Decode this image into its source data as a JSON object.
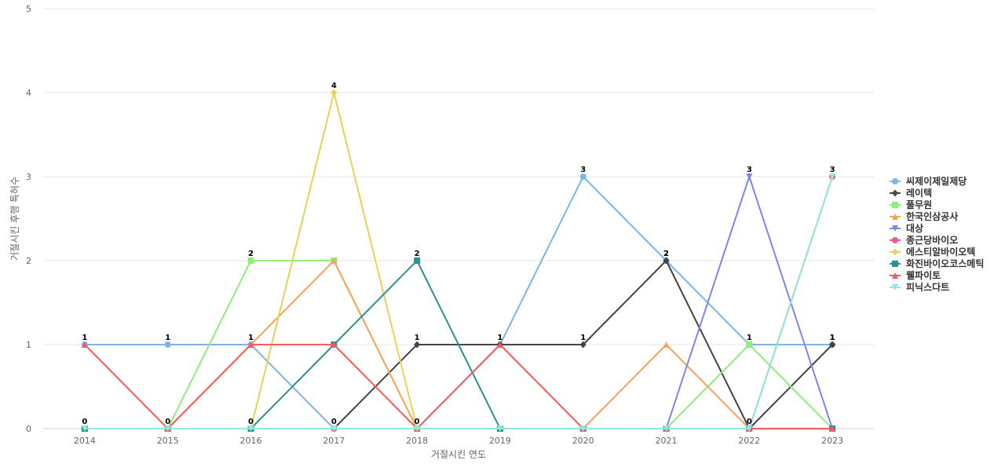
{
  "chart_data": {
    "type": "line",
    "title": "",
    "xlabel": "거절시킨 연도",
    "ylabel": "거절시킨 후행 특허수",
    "x": [
      "2014",
      "2015",
      "2016",
      "2017",
      "2018",
      "2019",
      "2020",
      "2021",
      "2022",
      "2023"
    ],
    "ylim": [
      0,
      5
    ],
    "yticks": [
      "0",
      "1",
      "2",
      "3",
      "4",
      "5"
    ],
    "grid": true,
    "legend_position": "right",
    "series": [
      {
        "name": "씨제이제일제당",
        "color": "#7cb5ec",
        "marker": "circle",
        "values": [
          1,
          1,
          1,
          0,
          0,
          1,
          3,
          2,
          1,
          1
        ]
      },
      {
        "name": "레이텍",
        "color": "#434348",
        "marker": "diamond",
        "values": [
          0,
          0,
          0,
          0,
          1,
          1,
          1,
          2,
          0,
          1
        ]
      },
      {
        "name": "풀무원",
        "color": "#90ed7d",
        "marker": "square",
        "values": [
          0,
          0,
          2,
          2,
          0,
          0,
          0,
          0,
          1,
          0
        ]
      },
      {
        "name": "한국인삼공사",
        "color": "#f7a35c",
        "marker": "triangle",
        "values": [
          0,
          0,
          1,
          2,
          0,
          0,
          0,
          1,
          0,
          0
        ]
      },
      {
        "name": "대상",
        "color": "#8085e9",
        "marker": "triangle-down",
        "values": [
          0,
          0,
          0,
          0,
          0,
          0,
          0,
          0,
          3,
          0
        ]
      },
      {
        "name": "종근당바이오",
        "color": "#f15c80",
        "marker": "circle",
        "values": [
          0,
          0,
          0,
          0,
          0,
          0,
          0,
          0,
          0,
          3
        ]
      },
      {
        "name": "에스티알바이오텍",
        "color": "#e4d354",
        "marker": "diamond",
        "values": [
          0,
          0,
          0,
          4,
          0,
          0,
          0,
          0,
          0,
          0
        ]
      },
      {
        "name": "화진바이오코스메틱",
        "color": "#2b908f",
        "marker": "square",
        "values": [
          0,
          0,
          0,
          1,
          2,
          0,
          0,
          0,
          0,
          0
        ]
      },
      {
        "name": "웰파이토",
        "color": "#f45b5b",
        "marker": "triangle",
        "values": [
          1,
          0,
          1,
          1,
          0,
          1,
          0,
          0,
          0,
          0
        ]
      },
      {
        "name": "피닉스다트",
        "color": "#91e8e1",
        "marker": "triangle-down",
        "values": [
          0,
          0,
          0,
          0,
          0,
          0,
          0,
          0,
          0,
          3
        ]
      }
    ],
    "data_labels": [
      {
        "series": 0,
        "index": 0
      },
      {
        "series": 0,
        "index": 1
      },
      {
        "series": 0,
        "index": 2
      },
      {
        "series": 0,
        "index": 3
      },
      {
        "series": 0,
        "index": 4
      },
      {
        "series": 0,
        "index": 5
      },
      {
        "series": 0,
        "index": 6
      },
      {
        "series": 0,
        "index": 7
      },
      {
        "series": 0,
        "index": 8
      },
      {
        "series": 0,
        "index": 9
      },
      {
        "series": 6,
        "index": 3
      },
      {
        "series": 2,
        "index": 2
      },
      {
        "series": 7,
        "index": 4
      },
      {
        "series": 4,
        "index": 8
      },
      {
        "series": 5,
        "index": 9
      },
      {
        "series": 1,
        "index": 0
      },
      {
        "series": 1,
        "index": 1
      },
      {
        "series": 1,
        "index": 2
      },
      {
        "series": 1,
        "index": 4
      },
      {
        "series": 1,
        "index": 6
      },
      {
        "series": 1,
        "index": 7
      },
      {
        "series": 1,
        "index": 8
      },
      {
        "series": 1,
        "index": 9
      }
    ]
  }
}
